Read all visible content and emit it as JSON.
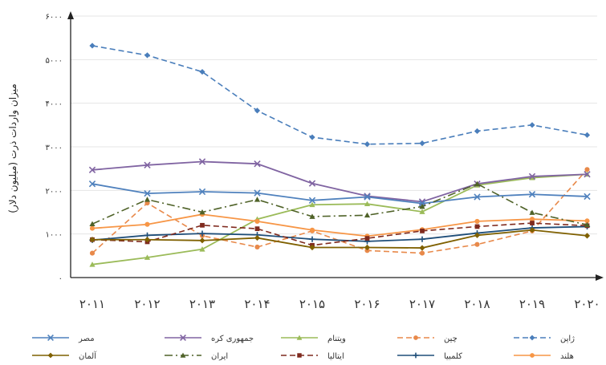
{
  "chart_data": {
    "type": "line",
    "ylabel": "میزان واردات ذرت (میلیون دلار)",
    "ylim": [
      0,
      6000
    ],
    "yticks": [
      "۰",
      "۱۰۰۰",
      "۲۰۰۰",
      "۳۰۰۰",
      "۴۰۰۰",
      "۵۰۰۰",
      "۶۰۰۰"
    ],
    "categories": [
      "۲۰۱۱",
      "۲۰۱۲",
      "۲۰۱۳",
      "۲۰۱۴",
      "۲۰۱۵",
      "۲۰۱۶",
      "۲۰۱۷",
      "۲۰۱۸",
      "۲۰۱۹",
      "۲۰۲۰"
    ],
    "grid": true,
    "legend_position": "bottom",
    "series": [
      {
        "name": "ژاپن",
        "color": "#4a7ebb",
        "dash": "dashed",
        "marker": "diamond",
        "values": [
          5320,
          5100,
          4720,
          3830,
          3220,
          3060,
          3080,
          3360,
          3500,
          3270
        ]
      },
      {
        "name": "چین",
        "color": "#e8894a",
        "dash": "dashed",
        "marker": "circle",
        "values": [
          560,
          1710,
          960,
          700,
          1070,
          620,
          560,
          760,
          1070,
          2480
        ]
      },
      {
        "name": "ویتنام",
        "color": "#9bbb59",
        "dash": "solid",
        "marker": "triangle",
        "values": [
          300,
          460,
          650,
          1340,
          1670,
          1690,
          1510,
          2120,
          2290,
          2370
        ]
      },
      {
        "name": "جمهوری کره",
        "color": "#8064a2",
        "dash": "solid",
        "marker": "x",
        "values": [
          2470,
          2580,
          2660,
          2610,
          2160,
          1870,
          1740,
          2150,
          2320,
          2370
        ]
      },
      {
        "name": "مصر",
        "color": "#4f81bd",
        "dash": "solid",
        "marker": "x",
        "values": [
          2150,
          1930,
          1970,
          1940,
          1770,
          1850,
          1700,
          1850,
          1910,
          1860
        ]
      },
      {
        "name": "هلند",
        "color": "#f79646",
        "dash": "solid",
        "marker": "circle",
        "values": [
          1130,
          1220,
          1450,
          1290,
          1090,
          950,
          1100,
          1290,
          1340,
          1300
        ]
      },
      {
        "name": "کلمبیا",
        "color": "#1f4e79",
        "dash": "solid",
        "marker": "plus",
        "values": [
          860,
          970,
          1010,
          980,
          880,
          830,
          880,
          1020,
          1140,
          1170
        ]
      },
      {
        "name": "ایتالیا",
        "color": "#7f2a1e",
        "dash": "dashed",
        "marker": "square",
        "values": [
          870,
          820,
          1200,
          1120,
          740,
          900,
          1070,
          1170,
          1250,
          1190
        ]
      },
      {
        "name": "ایران",
        "color": "#4f6228",
        "dash": "dashdot",
        "marker": "triangle",
        "values": [
          1230,
          1790,
          1500,
          1790,
          1400,
          1430,
          1630,
          2150,
          1490,
          1210
        ]
      },
      {
        "name": "آلمان",
        "color": "#7f6000",
        "dash": "solid",
        "marker": "diamond",
        "values": [
          870,
          870,
          850,
          910,
          690,
          690,
          680,
          970,
          1090,
          960
        ]
      }
    ]
  }
}
